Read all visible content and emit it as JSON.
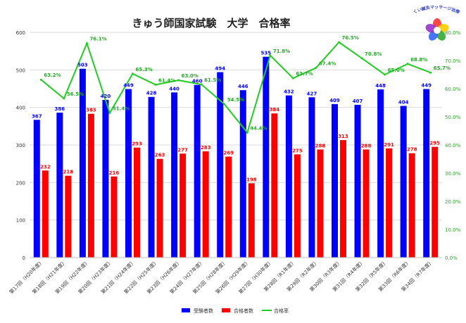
{
  "chart_data": {
    "type": "bar+line",
    "title": "きゅう師国家試験　大学　合格率",
    "categories": [
      "第17回（H20年度）",
      "第18回（H21年度）",
      "第19回（H22年度）",
      "第20回（H23年度）",
      "第21回（H24年度）",
      "第22回（H25年度）",
      "第23回（H26年度）",
      "第24回（H27年度）",
      "第25回（H28年度）",
      "第26回（H29年度）",
      "第27回（H30年度）",
      "第28回（R1年度）",
      "第29回（R2年度）",
      "第30回（R3年度）",
      "第31回（R4年度）",
      "第32回（R5年度）",
      "第33回（R6年度）",
      "第34回（R7年度）"
    ],
    "series": [
      {
        "name": "受験者数",
        "kind": "bar",
        "axis": "left",
        "color": "#0000ff",
        "values": [
          367,
          386,
          503,
          420,
          449,
          428,
          440,
          460,
          494,
          446,
          535,
          432,
          427,
          409,
          407,
          448,
          404,
          449
        ]
      },
      {
        "name": "合格者数",
        "kind": "bar",
        "axis": "left",
        "color": "#ff0000",
        "values": [
          232,
          218,
          383,
          216,
          293,
          263,
          277,
          283,
          269,
          198,
          384,
          275,
          288,
          313,
          288,
          291,
          278,
          295
        ]
      },
      {
        "name": "合格率",
        "kind": "line",
        "axis": "right",
        "color": "#22cc22",
        "values": [
          63.2,
          56.5,
          76.1,
          51.4,
          65.3,
          61.4,
          63.0,
          61.5,
          54.5,
          44.4,
          71.8,
          63.7,
          67.4,
          76.5,
          70.8,
          65.0,
          68.8,
          65.7
        ]
      }
    ],
    "y_left": {
      "min": 0,
      "max": 600,
      "ticks": [
        0,
        100,
        200,
        300,
        400,
        500,
        600
      ]
    },
    "y_right": {
      "min": 0,
      "max": 80,
      "ticks": [
        "0.0%",
        "10.0%",
        "20.0%",
        "30.0%",
        "40.0%",
        "50.0%",
        "60.0%",
        "70.0%",
        "80.0%"
      ]
    },
    "grid": true,
    "legend_position": "bottom"
  },
  "logo": {
    "text": "おくい鍼灸マッサージ治療院",
    "colors": [
      "#ff3333",
      "#ffcc00",
      "#33aa33",
      "#3366ff",
      "#9933cc"
    ]
  }
}
